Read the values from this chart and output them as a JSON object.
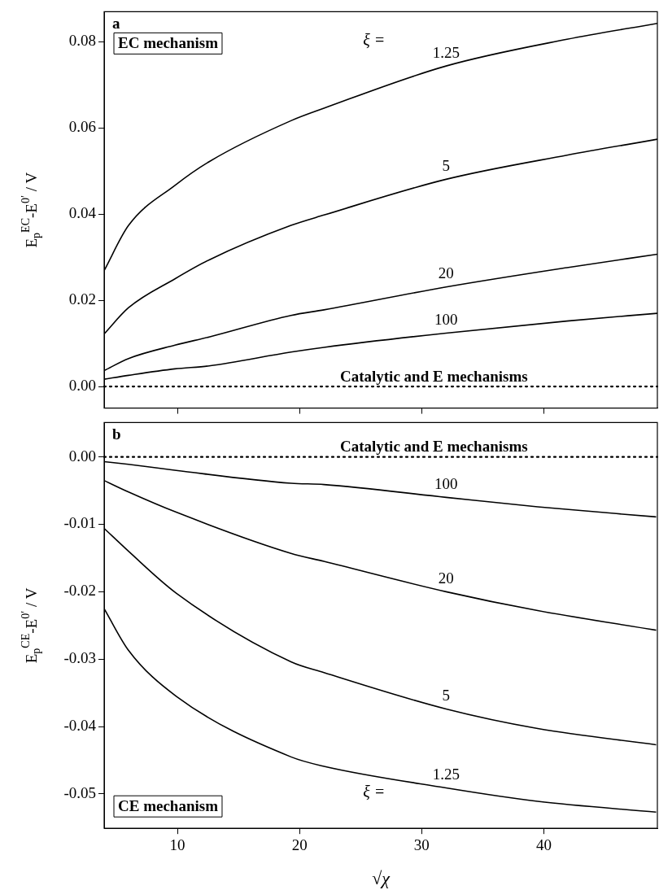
{
  "chart_data": [
    {
      "type": "line",
      "title": "a",
      "subtitle": "EC mechanism",
      "ylabel": "E$_{p}$$^{EC}$-E$^{0′}$ / V",
      "legend_title": "ξ =",
      "tick_labels": "y",
      "x": [
        4,
        6,
        9.8,
        12.6,
        19.3,
        22,
        32,
        41.9,
        49.3
      ],
      "series": [
        {
          "name": "1.25",
          "color": "#000000",
          "values": [
            0.0269,
            0.0374,
            0.0467,
            0.0522,
            0.0617,
            0.0646,
            0.0744,
            0.0806,
            0.0843
          ]
        },
        {
          "name": "5",
          "color": "#000000",
          "values": [
            0.0122,
            0.0183,
            0.025,
            0.0294,
            0.0374,
            0.0398,
            0.0481,
            0.0537,
            0.0574
          ]
        },
        {
          "name": "20",
          "color": "#000000",
          "values": [
            0.0037,
            0.0065,
            0.0096,
            0.0115,
            0.0165,
            0.0178,
            0.0231,
            0.0276,
            0.0307
          ]
        },
        {
          "name": "100",
          "color": "#000000",
          "values": [
            0.0017,
            0.0026,
            0.0041,
            0.0048,
            0.008,
            0.0091,
            0.0124,
            0.0152,
            0.017
          ]
        }
      ],
      "xlim": [
        4,
        49.3
      ],
      "xticks": [
        10,
        20,
        30,
        40
      ],
      "ylim": [
        -0.005,
        0.087
      ],
      "yticks": [
        {
          "value": 0,
          "label": "0.00"
        },
        {
          "value": 0.02,
          "label": "0.02"
        },
        {
          "value": 0.04,
          "label": "0.04"
        },
        {
          "value": 0.06,
          "label": "0.06"
        },
        {
          "value": 0.08,
          "label": "0.08"
        }
      ],
      "ref_lines": [
        {
          "axis": "y",
          "value": 0,
          "label": "Catalytic and E mechanisms",
          "line_style": "dotted",
          "color": "#000000"
        }
      ]
    },
    {
      "type": "line",
      "title": "b",
      "subtitle": "CE mechanism",
      "xlabel": "√χ",
      "ylabel": "E$_{p}$$^{CE}$-E$^{0′}$ / V",
      "legend_title": "ξ =",
      "x": [
        4,
        6,
        9.9,
        19.3,
        22,
        32,
        39.5,
        49.2
      ],
      "series": [
        {
          "name": "100",
          "color": "#000000",
          "values": [
            -0.0007,
            -0.0011,
            -0.002,
            -0.0039,
            -0.0041,
            -0.006,
            -0.0074,
            -0.0089
          ]
        },
        {
          "name": "20",
          "color": "#000000",
          "values": [
            -0.0035,
            -0.0052,
            -0.0082,
            -0.0143,
            -0.0155,
            -0.02,
            -0.0228,
            -0.0257
          ]
        },
        {
          "name": "5",
          "color": "#000000",
          "values": [
            -0.0106,
            -0.014,
            -0.0202,
            -0.0304,
            -0.032,
            -0.0374,
            -0.0403,
            -0.0427
          ]
        },
        {
          "name": "1.25",
          "color": "#000000",
          "values": [
            -0.0225,
            -0.0287,
            -0.0355,
            -0.0445,
            -0.0459,
            -0.0491,
            -0.0511,
            -0.0527
          ]
        }
      ],
      "xlim": [
        4,
        49.3
      ],
      "xticks": [
        10,
        20,
        30,
        40
      ],
      "ylim": [
        -0.0551,
        0.0051
      ],
      "yticks": [
        {
          "value": -0.05,
          "label": "-0.05"
        },
        {
          "value": -0.04,
          "label": "-0.04"
        },
        {
          "value": -0.03,
          "label": "-0.03"
        },
        {
          "value": -0.02,
          "label": "-0.02"
        },
        {
          "value": -0.01,
          "label": "-0.01"
        },
        {
          "value": 0,
          "label": "0.00"
        }
      ],
      "ref_lines": [
        {
          "axis": "y",
          "value": 0,
          "label": "Catalytic and E mechanisms",
          "line_style": "dotted",
          "color": "#000000"
        }
      ]
    }
  ]
}
